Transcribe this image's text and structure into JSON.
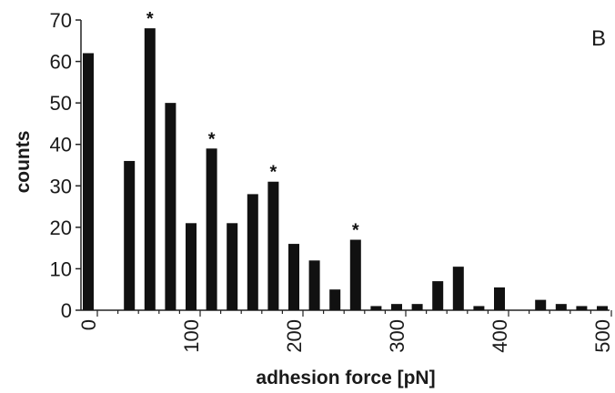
{
  "chart_data": {
    "type": "bar",
    "panel_label": "B",
    "xlabel": "adhesion force [pN]",
    "ylabel": "counts",
    "xlim": [
      0,
      500
    ],
    "ylim": [
      0,
      70
    ],
    "x_ticks": [
      0,
      100,
      200,
      300,
      400,
      500
    ],
    "y_ticks": [
      0,
      10,
      20,
      30,
      40,
      50,
      60,
      70
    ],
    "bin_width": 20,
    "bar_color": "#111111",
    "annotation_symbol": "*",
    "bars": [
      {
        "x": 0,
        "value": 62
      },
      {
        "x": 20,
        "value": 0
      },
      {
        "x": 40,
        "value": 36
      },
      {
        "x": 60,
        "value": 68,
        "marked": true
      },
      {
        "x": 80,
        "value": 50
      },
      {
        "x": 100,
        "value": 21
      },
      {
        "x": 120,
        "value": 39,
        "marked": true
      },
      {
        "x": 140,
        "value": 21
      },
      {
        "x": 160,
        "value": 28
      },
      {
        "x": 180,
        "value": 31,
        "marked": true
      },
      {
        "x": 200,
        "value": 16
      },
      {
        "x": 220,
        "value": 12
      },
      {
        "x": 240,
        "value": 5
      },
      {
        "x": 260,
        "value": 17,
        "marked": true
      },
      {
        "x": 280,
        "value": 1
      },
      {
        "x": 300,
        "value": 1.5
      },
      {
        "x": 320,
        "value": 1.5
      },
      {
        "x": 340,
        "value": 7
      },
      {
        "x": 360,
        "value": 10.5
      },
      {
        "x": 380,
        "value": 1
      },
      {
        "x": 400,
        "value": 5.5
      },
      {
        "x": 420,
        "value": 0
      },
      {
        "x": 440,
        "value": 2.5
      },
      {
        "x": 460,
        "value": 1.5
      },
      {
        "x": 480,
        "value": 1
      },
      {
        "x": 500,
        "value": 1
      }
    ]
  }
}
